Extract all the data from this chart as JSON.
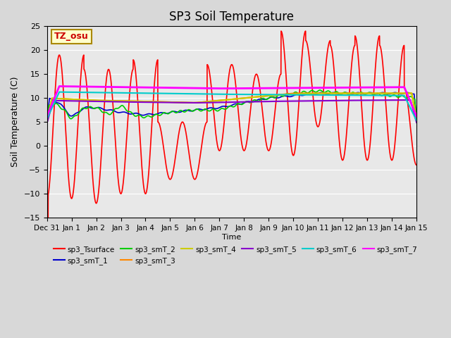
{
  "title": "SP3 Soil Temperature",
  "ylabel": "Soil Temperature (C)",
  "xlabel": "Time",
  "xlim_days": [
    0,
    15
  ],
  "ylim": [
    -15,
    25
  ],
  "yticks": [
    -15,
    -10,
    -5,
    0,
    5,
    10,
    15,
    20,
    25
  ],
  "xtick_labels": [
    "Dec 31",
    "Jan 1",
    "Jan 2",
    "Jan 3",
    "Jan 4",
    "Jan 5",
    "Jan 6",
    "Jan 7",
    "Jan 8",
    "Jan 9",
    "Jan 10",
    "Jan 11",
    "Jan 12",
    "Jan 13",
    "Jan 14",
    "Jan 15"
  ],
  "bg_color": "#d8d8d8",
  "plot_bg_color": "#e8e8e8",
  "tz_label": "TZ_osu",
  "series_colors": {
    "sp3_Tsurface": "#ff0000",
    "sp3_smT_1": "#0000cc",
    "sp3_smT_2": "#00cc00",
    "sp3_smT_3": "#ff8800",
    "sp3_smT_4": "#cccc00",
    "sp3_smT_5": "#8800cc",
    "sp3_smT_6": "#00cccc",
    "sp3_smT_7": "#ff00ff"
  }
}
